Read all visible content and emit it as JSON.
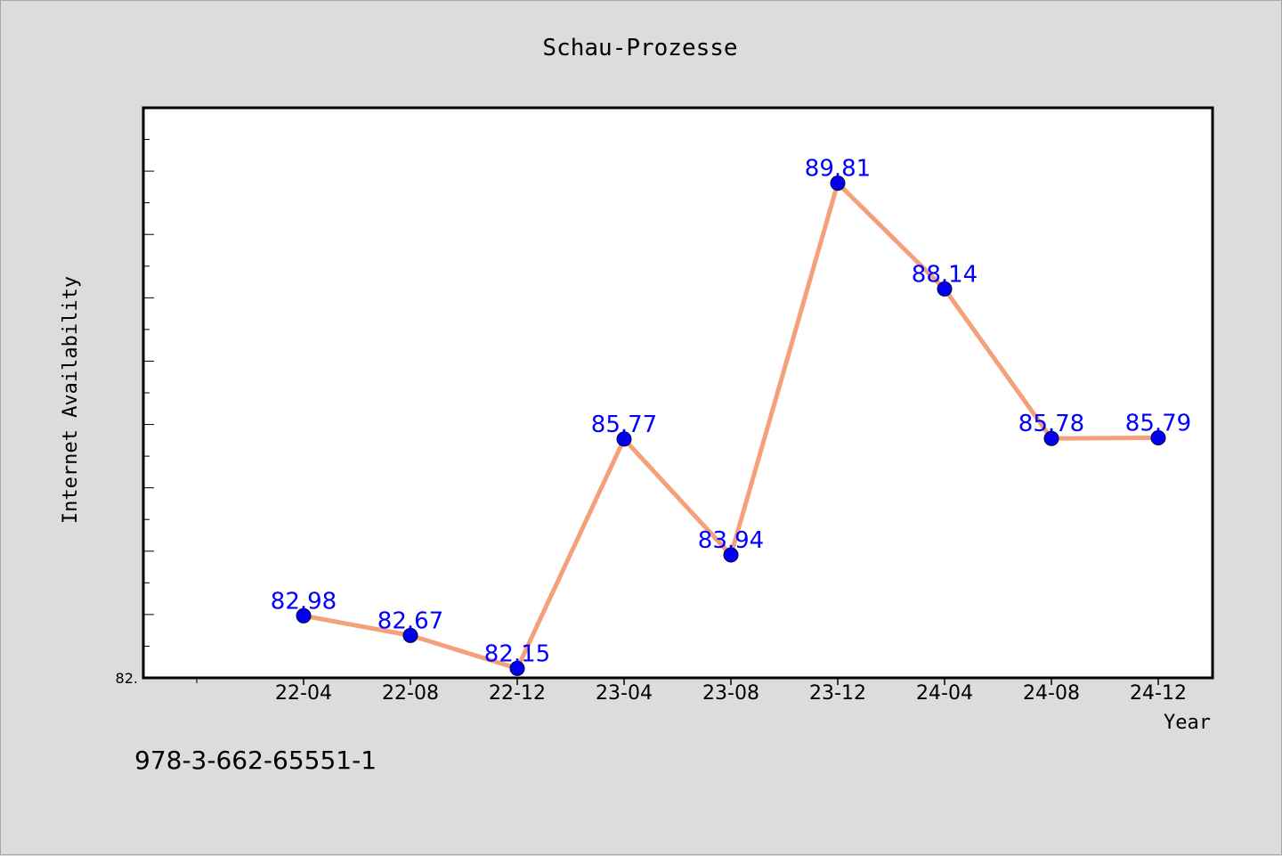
{
  "chart_data": {
    "type": "line",
    "title": "Schau-Prozesse",
    "xlabel": "Year",
    "ylabel": "Internet Availability",
    "categories": [
      "22-04",
      "22-08",
      "22-12",
      "23-04",
      "23-08",
      "23-12",
      "24-04",
      "24-08",
      "24-12"
    ],
    "values": [
      82.98,
      82.67,
      82.15,
      85.77,
      83.94,
      89.81,
      88.14,
      85.78,
      85.79
    ],
    "data_labels": [
      "82.98",
      "82.67",
      "82.15",
      "85.77",
      "83.94",
      "89.81",
      "88.14",
      "85.78",
      "85.79"
    ],
    "ylim": [
      82.0,
      91.0
    ],
    "yticks": [
      82.0
    ],
    "ytick_labels": [
      "82."
    ],
    "grid": false,
    "legend": "none",
    "colors": {
      "line": "#f4a07a",
      "marker": "#0000ee",
      "label": "#0000ff"
    }
  },
  "caption": "978-3-662-65551-1"
}
